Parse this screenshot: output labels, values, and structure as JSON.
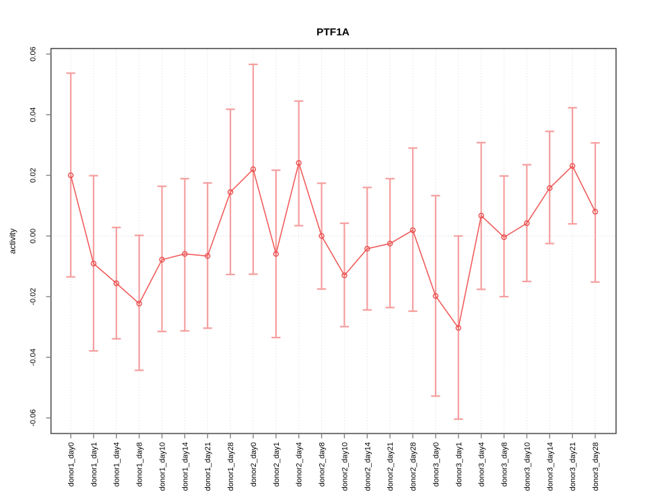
{
  "chart_data": {
    "type": "line",
    "title": "PTF1A",
    "xlabel": "",
    "ylabel": "activity",
    "legend": "none",
    "categories": [
      "donor1_day0",
      "donor1_day1",
      "donor1_day4",
      "donor1_day8",
      "donor1_day10",
      "donor1_day14",
      "donor1_day21",
      "donor1_day28",
      "donor2_day0",
      "donor2_day1",
      "donor2_day4",
      "donor2_day8",
      "donor2_day10",
      "donor2_day14",
      "donor2_day21",
      "donor2_day28",
      "donor3_day0",
      "donor3_day1",
      "donor3_day4",
      "donor3_day8",
      "donor3_day10",
      "donor3_day14",
      "donor3_day21",
      "donor3_day28"
    ],
    "values": [
      0.02,
      -0.0091,
      -0.0156,
      -0.0223,
      -0.0078,
      -0.0059,
      -0.0066,
      0.0145,
      0.022,
      -0.0059,
      0.0241,
      0.0,
      -0.013,
      -0.0042,
      -0.0025,
      0.0019,
      -0.0198,
      -0.0303,
      0.0067,
      -0.0004,
      0.0042,
      0.0158,
      0.0231,
      0.008
    ],
    "error_upper": [
      0.0537,
      0.0199,
      0.0028,
      0.0002,
      0.0164,
      0.0189,
      0.0175,
      0.0418,
      0.0566,
      0.0217,
      0.0445,
      0.0174,
      0.0042,
      0.016,
      0.0189,
      0.029,
      0.0133,
      0.0,
      0.0308,
      0.0198,
      0.0235,
      0.0345,
      0.0423,
      0.0307
    ],
    "error_lower": [
      -0.0135,
      -0.0379,
      -0.0339,
      -0.0443,
      -0.0315,
      -0.0313,
      -0.0304,
      -0.0127,
      -0.0126,
      -0.0335,
      0.0034,
      -0.0175,
      -0.0299,
      -0.0244,
      -0.0236,
      -0.0248,
      -0.0528,
      -0.0604,
      -0.0176,
      -0.02,
      -0.015,
      -0.0025,
      0.004,
      -0.0152
    ],
    "ylim": [
      -0.06,
      0.06
    ],
    "yticks": [
      0.06,
      0.04,
      0.02,
      0.0,
      -0.02,
      -0.04,
      -0.06
    ],
    "ytick_labels": [
      "0.06",
      "0.04",
      "0.02",
      "0.00",
      "-0.02",
      "-0.04",
      "-0.06"
    ],
    "grid": {
      "vertical_gridlines": true,
      "horizontal_zero_line": true
    },
    "colors": {
      "series_line": "#f15c5c",
      "point_stroke": "#e84d4d",
      "error_bar": "#f59e9e",
      "grid_line": "#e2e2e2",
      "zero_line": "#dcdcdc",
      "axis_box": "#4d4d4d",
      "tick": "#808080",
      "text": "#000000",
      "background": "#ffffff"
    }
  }
}
